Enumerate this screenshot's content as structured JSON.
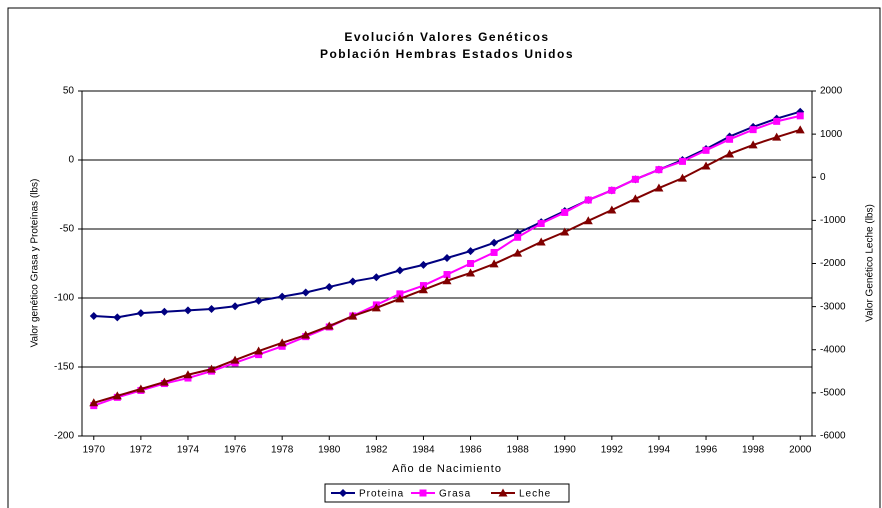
{
  "chart_data": {
    "type": "line",
    "title": "Evolución Valores Genéticos",
    "subtitle": "Población Hembras Estados Unidos",
    "x_label": "Año de Nacimiento",
    "y_label": "Valor genético Grasa y Proteínas (lbs)",
    "y2_label": "Valor Genético Leche (lbs)",
    "x": [
      1970,
      1971,
      1972,
      1973,
      1974,
      1975,
      1976,
      1977,
      1978,
      1979,
      1980,
      1981,
      1982,
      1983,
      1984,
      1985,
      1986,
      1987,
      1988,
      1989,
      1990,
      1991,
      1992,
      1993,
      1994,
      1995,
      1996,
      1997,
      1998,
      1999,
      2000
    ],
    "xlim": [
      1969.5,
      2000.5
    ],
    "xticks": [
      1970,
      1972,
      1974,
      1976,
      1978,
      1980,
      1982,
      1984,
      1986,
      1988,
      1990,
      1992,
      1994,
      1996,
      1998,
      2000
    ],
    "ylim": [
      -200,
      50
    ],
    "yticks": [
      -200,
      -150,
      -100,
      -50,
      0,
      50
    ],
    "y2lim": [
      -6000,
      2000
    ],
    "y2ticks": [
      -6000,
      -5000,
      -4000,
      -3000,
      -2000,
      -1000,
      0,
      1000,
      2000
    ],
    "grid": true,
    "legend": "bottom",
    "series": [
      {
        "name": "Proteina",
        "color": "#000080",
        "marker": "diamond",
        "values": [
          -113,
          -114,
          -111,
          -110,
          -109,
          -108,
          -106,
          -102,
          -99,
          -96,
          -92,
          -88,
          -85,
          -80,
          -76,
          -71,
          -66,
          -60,
          -53,
          -45,
          -37,
          -29,
          -22,
          -14,
          -7,
          0,
          8,
          17,
          24,
          30,
          35
        ]
      },
      {
        "name": "Grasa",
        "color": "#ff00ff",
        "marker": "square",
        "values": [
          -178,
          -172,
          -167,
          -162,
          -158,
          -153,
          -147,
          -141,
          -135,
          -128,
          -121,
          -113,
          -105,
          -97,
          -91,
          -83,
          -75,
          -67,
          -56,
          -46,
          -38,
          -29,
          -22,
          -14,
          -7,
          -1,
          7,
          15,
          22,
          28,
          32
        ]
      },
      {
        "name": "Leche",
        "color": "#800000",
        "marker": "triangle",
        "axis": "y2",
        "values": [
          -5230,
          -5070,
          -4910,
          -4750,
          -4580,
          -4450,
          -4240,
          -4030,
          -3840,
          -3660,
          -3450,
          -3220,
          -3030,
          -2820,
          -2610,
          -2400,
          -2220,
          -2010,
          -1760,
          -1500,
          -1270,
          -1010,
          -760,
          -500,
          -250,
          -20,
          260,
          540,
          750,
          930,
          1100
        ]
      }
    ]
  }
}
